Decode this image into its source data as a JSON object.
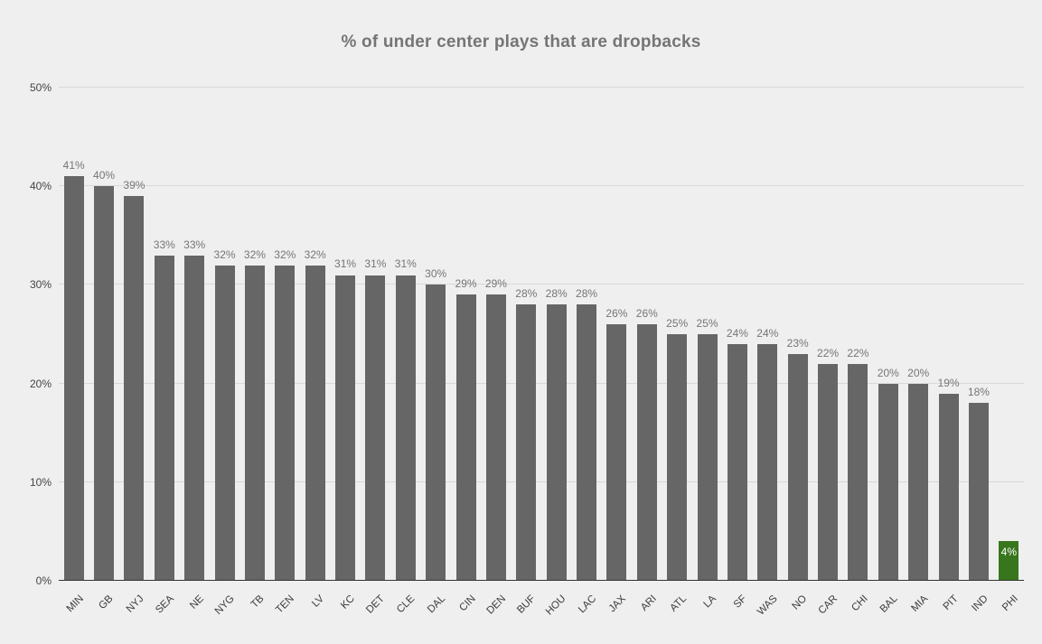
{
  "chart_data": {
    "type": "bar",
    "title": "% of under center plays that are dropbacks",
    "categories": [
      "MIN",
      "GB",
      "NYJ",
      "SEA",
      "NE",
      "NYG",
      "TB",
      "TEN",
      "LV",
      "KC",
      "DET",
      "CLE",
      "DAL",
      "CIN",
      "DEN",
      "BUF",
      "HOU",
      "LAC",
      "JAX",
      "ARI",
      "ATL",
      "LA",
      "SF",
      "WAS",
      "NO",
      "CAR",
      "CHI",
      "BAL",
      "MIA",
      "PIT",
      "IND",
      "PHI"
    ],
    "values": [
      41,
      40,
      39,
      33,
      33,
      32,
      32,
      32,
      32,
      31,
      31,
      31,
      30,
      29,
      29,
      28,
      28,
      28,
      26,
      26,
      25,
      25,
      24,
      24,
      23,
      22,
      22,
      20,
      20,
      19,
      18,
      4
    ],
    "value_suffix": "%",
    "ylim": [
      0,
      50
    ],
    "yticks": [
      0,
      10,
      20,
      30,
      40,
      50
    ],
    "ytick_suffix": "%",
    "grid": true,
    "legend": "none",
    "xlabel": "",
    "ylabel": "",
    "colors": {
      "background": "#efefef",
      "bar": "#666666",
      "highlight": "#38761d",
      "highlight_label": "#ffffff",
      "data_label": "#757575",
      "title": "#757575",
      "y_axis_label": "#444444",
      "x_axis_label": "#3d3d3d",
      "gridline": "#d9d9d9",
      "baseline": "#333333"
    },
    "highlight_team": "PHI",
    "highlight_label_position": "inside"
  }
}
